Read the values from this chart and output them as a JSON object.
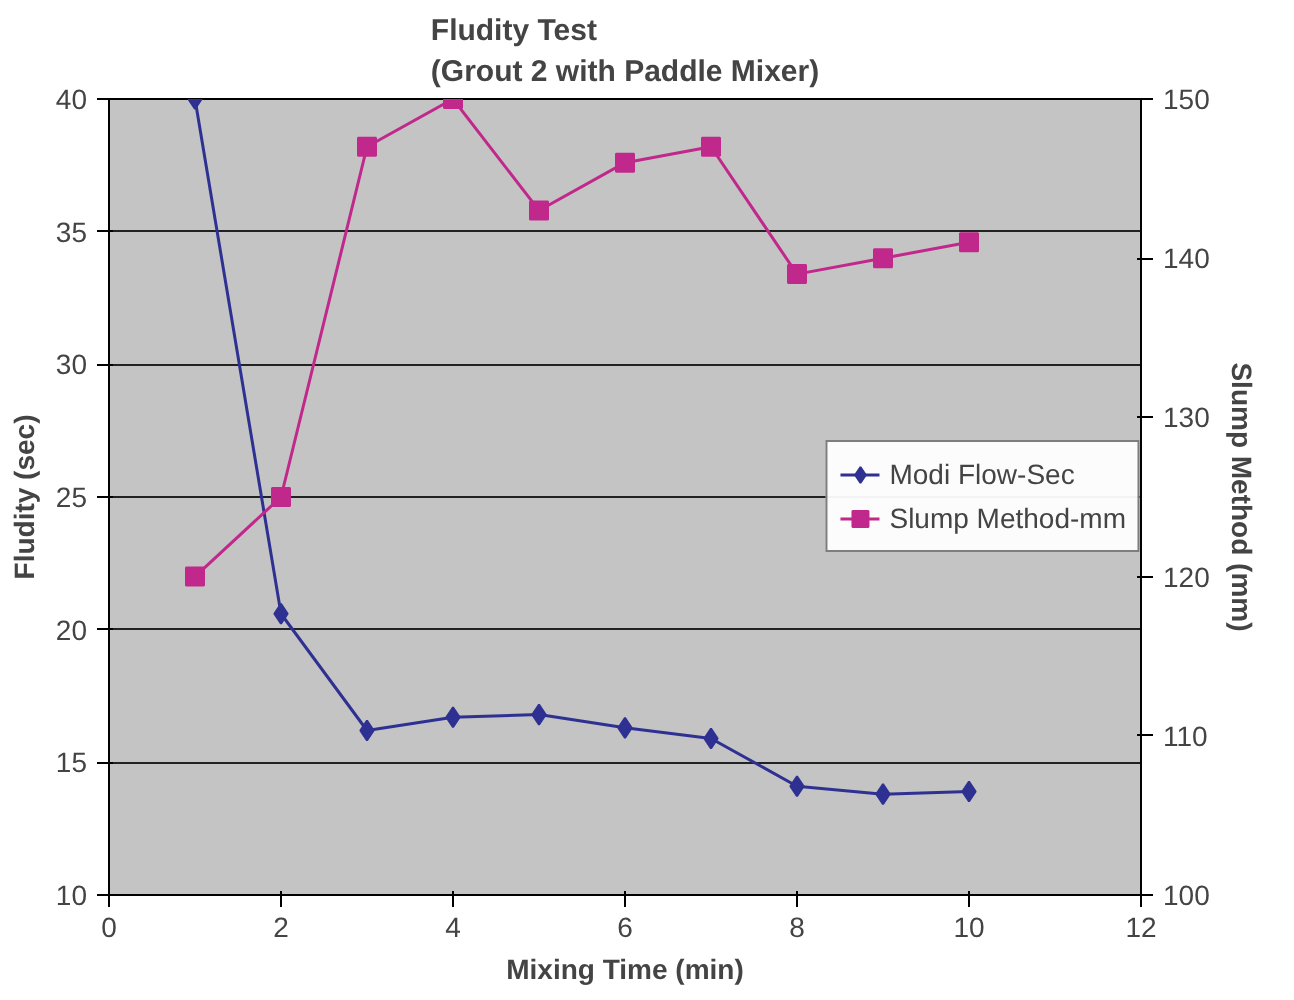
{
  "chart_data": {
    "type": "line",
    "title": "Fludity Test\n(Grout 2 with Paddle Mixer)",
    "xlabel": "Mixing Time (min)",
    "ylabel": "Fludity (sec)",
    "y2label": "Slump Method (mm)",
    "x": [
      1,
      2,
      3,
      4,
      5,
      6,
      7,
      8,
      9,
      10
    ],
    "series": [
      {
        "name": "Modi Flow-Sec",
        "color": "#2e3192",
        "marker": "diamond",
        "values": [
          40,
          20.6,
          16.2,
          16.7,
          16.8,
          16.3,
          15.9,
          14.1,
          13.8,
          13.9
        ]
      },
      {
        "name": "Slump Method-mm",
        "color": "#c0288c",
        "marker": "square",
        "axis": "y2",
        "values": [
          120,
          125,
          147,
          150,
          143,
          146,
          147,
          139,
          140,
          141
        ]
      }
    ],
    "xlim": [
      0,
      12
    ],
    "xticks": [
      0,
      2,
      4,
      6,
      8,
      10,
      12
    ],
    "ylim": [
      10,
      40
    ],
    "yticks": [
      10,
      15,
      20,
      25,
      30,
      35,
      40
    ],
    "y2lim": [
      100,
      150
    ],
    "y2ticks": [
      100,
      110,
      120,
      130,
      140,
      150
    ],
    "grid": "y",
    "legend": "right"
  }
}
